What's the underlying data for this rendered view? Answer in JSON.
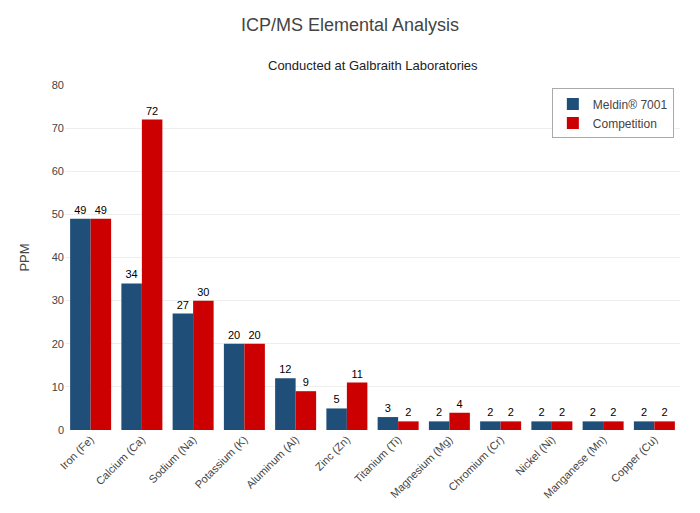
{
  "chart_data": {
    "type": "bar",
    "title": "ICP/MS Elemental Analysis",
    "subtitle": "Conducted at Galbraith Laboratories",
    "categories": [
      "Iron (Fe)",
      "Calcium (Ca)",
      "Sodium (Na)",
      "Potassium (K)",
      "Aluminum (Al)",
      "Zinc (Zn)",
      "Titanium (Ti)",
      "Magnesium (Mg)",
      "Chromium (Cr)",
      "Nickel (Ni)",
      "Manganese (Mn)",
      "Copper (Cu)"
    ],
    "series": [
      {
        "name": "Meldin® 7001",
        "color": "#1F4E79",
        "values": [
          49,
          34,
          27,
          20,
          12,
          5,
          3,
          2,
          2,
          2,
          2,
          2
        ]
      },
      {
        "name": "Competition",
        "color": "#CC0000",
        "values": [
          49,
          72,
          30,
          20,
          9,
          11,
          2,
          4,
          2,
          2,
          2,
          2
        ]
      }
    ],
    "ylabel": "PPM",
    "ylim": [
      0,
      80
    ],
    "yticks": [
      0,
      10,
      20,
      30,
      40,
      50,
      60,
      70,
      80
    ],
    "grid": true,
    "legend": "upper right",
    "data_labels": true
  }
}
